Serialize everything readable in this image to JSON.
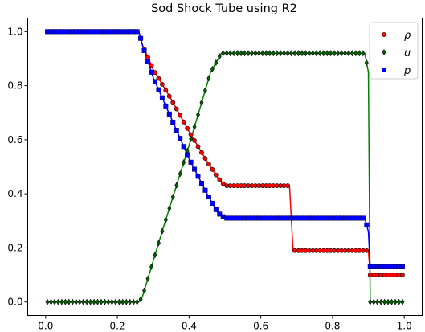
{
  "chart_data": {
    "type": "scatter",
    "title": "Sod Shock Tube using R2",
    "xlabel": "",
    "ylabel": "",
    "xlim": [
      -0.05,
      1.05
    ],
    "ylim": [
      -0.05,
      1.05
    ],
    "xticks": [
      "0.0",
      "0.2",
      "0.4",
      "0.6",
      "0.8",
      "1.0"
    ],
    "yticks": [
      "0.0",
      "0.2",
      "0.4",
      "0.6",
      "0.8",
      "1.0"
    ],
    "grid": false,
    "legend_position": "top-right",
    "series": [
      {
        "name": "ρ",
        "marker": "circle",
        "color": "#ff0000",
        "line_color": "#ff0000",
        "profile": [
          [
            0.0,
            1.0
          ],
          [
            0.26,
            1.0
          ],
          [
            0.27,
            0.95
          ],
          [
            0.3,
            0.86
          ],
          [
            0.35,
            0.75
          ],
          [
            0.4,
            0.63
          ],
          [
            0.45,
            0.52
          ],
          [
            0.48,
            0.46
          ],
          [
            0.5,
            0.43
          ],
          [
            0.68,
            0.43
          ],
          [
            0.69,
            0.19
          ],
          [
            0.7,
            0.19
          ],
          [
            0.9,
            0.19
          ],
          [
            0.905,
            0.1
          ],
          [
            1.0,
            0.1
          ]
        ]
      },
      {
        "name": "u",
        "marker": "diamond",
        "color": "#006400",
        "line_color": "#008000",
        "profile": [
          [
            0.0,
            0.0
          ],
          [
            0.26,
            0.0
          ],
          [
            0.27,
            0.02
          ],
          [
            0.32,
            0.24
          ],
          [
            0.4,
            0.58
          ],
          [
            0.46,
            0.85
          ],
          [
            0.49,
            0.92
          ],
          [
            0.89,
            0.92
          ],
          [
            0.9,
            0.85
          ],
          [
            0.905,
            0.0
          ],
          [
            1.0,
            0.0
          ]
        ]
      },
      {
        "name": "p",
        "marker": "square",
        "color": "#0000ff",
        "line_color": "#0000ff",
        "profile": [
          [
            0.0,
            1.0
          ],
          [
            0.26,
            1.0
          ],
          [
            0.27,
            0.95
          ],
          [
            0.3,
            0.83
          ],
          [
            0.35,
            0.68
          ],
          [
            0.4,
            0.53
          ],
          [
            0.45,
            0.4
          ],
          [
            0.48,
            0.33
          ],
          [
            0.5,
            0.31
          ],
          [
            0.89,
            0.31
          ],
          [
            0.9,
            0.26
          ],
          [
            0.905,
            0.13
          ],
          [
            1.0,
            0.13
          ]
        ]
      }
    ]
  }
}
